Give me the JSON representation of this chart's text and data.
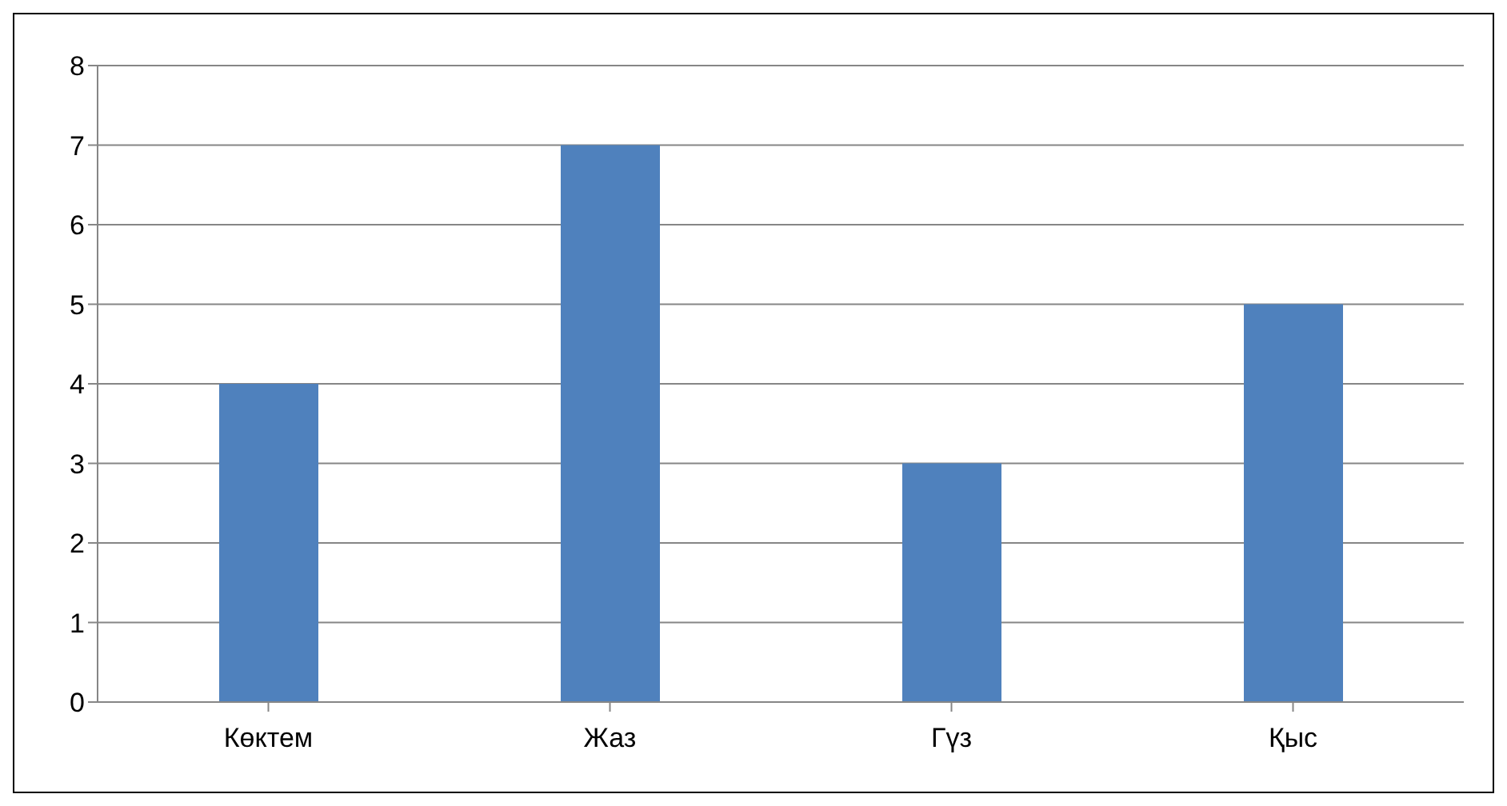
{
  "chart_data": {
    "type": "bar",
    "categories": [
      "Көктем",
      "Жаз",
      "Гүз",
      "Қыс"
    ],
    "values": [
      4,
      7,
      3,
      5
    ],
    "color": "#4f81bd",
    "ylim": [
      0,
      8
    ],
    "yticks": [
      0,
      1,
      2,
      3,
      4,
      5,
      6,
      7,
      8
    ],
    "grid": "y"
  }
}
